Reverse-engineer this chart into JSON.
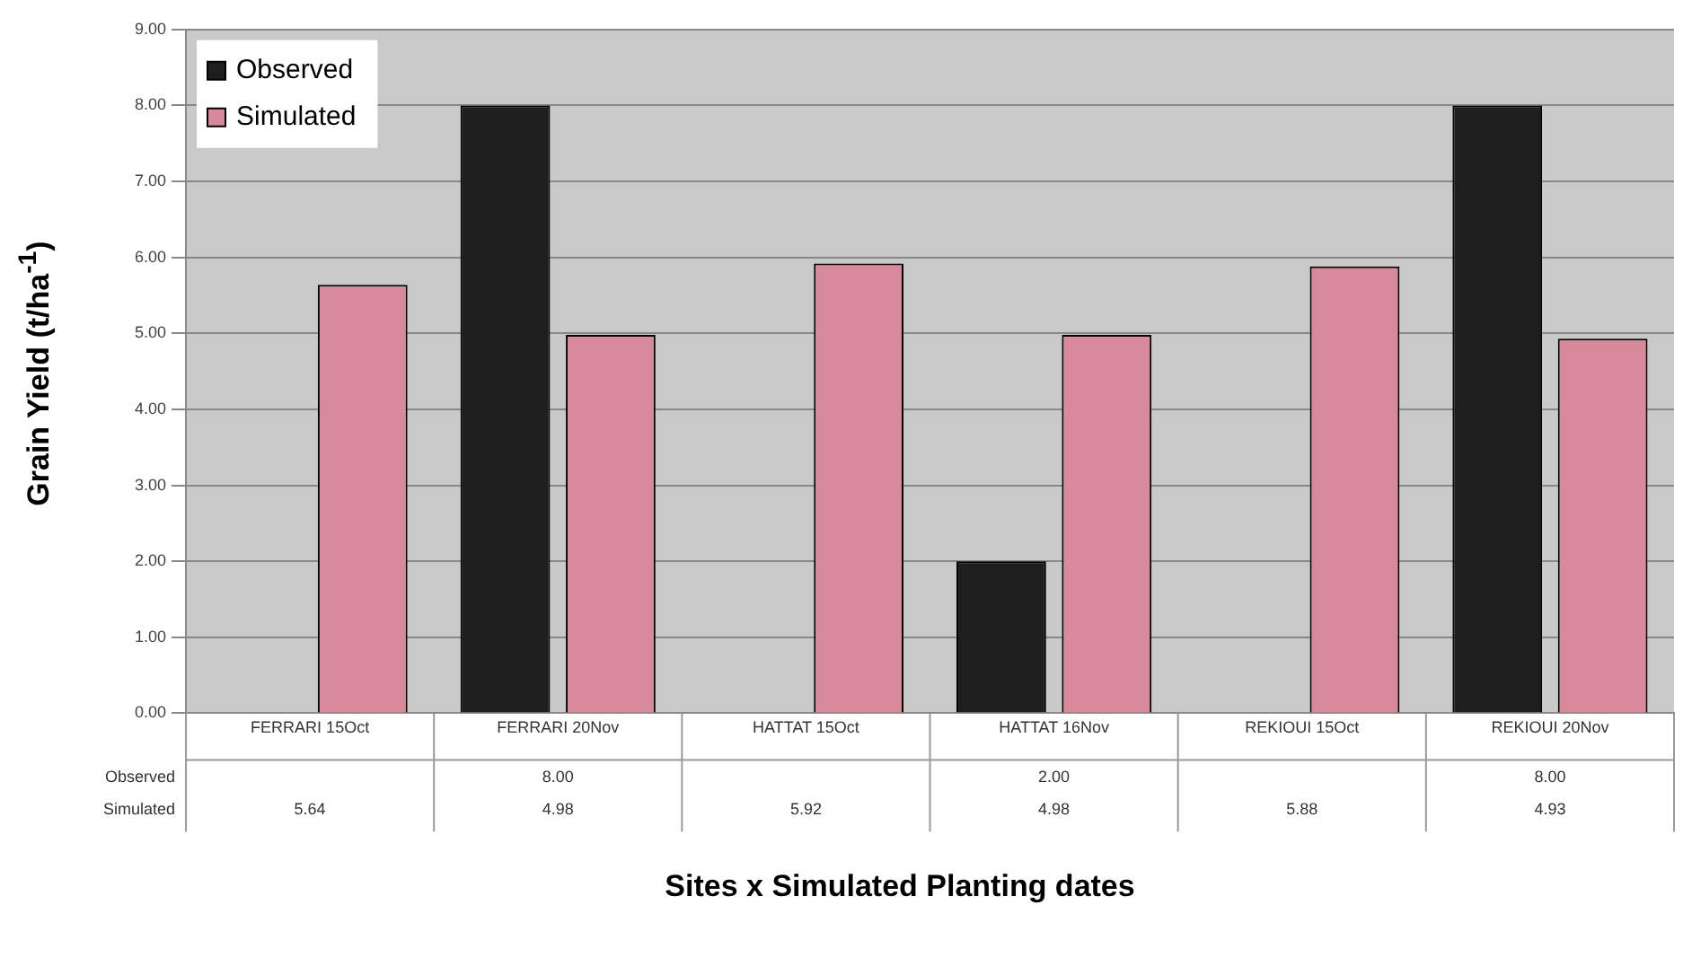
{
  "chart_data": {
    "type": "bar",
    "xlabel": "Sites x Simulated Planting dates",
    "ylabel": "Grain Yield (t/ha$^{-1}$)",
    "categories": [
      "FERRARI 15Oct",
      "FERRARI 20Nov",
      "HATTAT 15Oct",
      "HATTAT 16Nov",
      "REKIOUI 15Oct",
      "REKIOUI 20Nov"
    ],
    "series": [
      {
        "name": "Observed",
        "color": "#1e1e1e",
        "values": [
          null,
          8,
          null,
          2,
          null,
          8
        ],
        "value_labels": [
          null,
          "8.00",
          null,
          "2.00",
          null,
          "8.00"
        ]
      },
      {
        "name": "Simulated",
        "color": "#d98a9a",
        "values": [
          5.64,
          4.98,
          5.92,
          4.98,
          5.88,
          4.93
        ],
        "value_labels": [
          "5.64",
          "4.98",
          "5.92",
          "4.98",
          "5.88",
          "4.93"
        ]
      }
    ],
    "ylim": [
      0,
      9
    ],
    "yticks": [
      {
        "value": 0,
        "label": "0.00"
      },
      {
        "value": 1,
        "label": "1.00"
      },
      {
        "value": 2,
        "label": "2.00"
      },
      {
        "value": 3,
        "label": "3.00"
      },
      {
        "value": 4,
        "label": "4.00"
      },
      {
        "value": 5,
        "label": "5.00"
      },
      {
        "value": 6,
        "label": "6.00"
      },
      {
        "value": 7,
        "label": "7.00"
      },
      {
        "value": 8,
        "label": "8.00"
      },
      {
        "value": 9,
        "label": "9.00"
      }
    ],
    "grid": "y",
    "legend": "top left"
  }
}
